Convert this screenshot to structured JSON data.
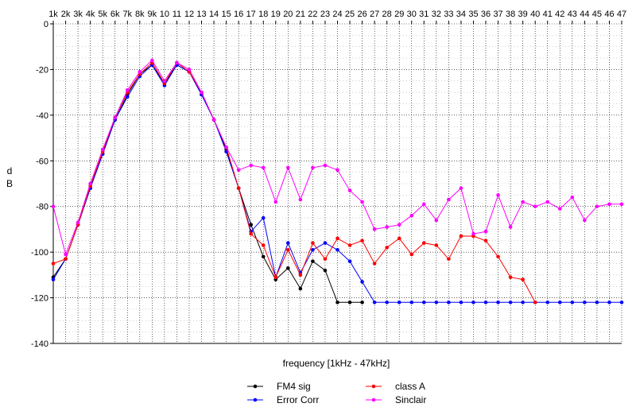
{
  "chart_data": {
    "type": "line",
    "title": "",
    "xlabel": "frequency [1kHz - 47kHz]",
    "ylabel": "d B",
    "ylabel_lines": [
      "d",
      "B"
    ],
    "x": [
      1,
      2,
      3,
      4,
      5,
      6,
      7,
      8,
      9,
      10,
      11,
      12,
      13,
      14,
      15,
      16,
      17,
      18,
      19,
      20,
      21,
      22,
      23,
      24,
      25,
      26,
      27,
      28,
      29,
      30,
      31,
      32,
      33,
      34,
      35,
      36,
      37,
      38,
      39,
      40,
      41,
      42,
      43,
      44,
      45,
      46,
      47
    ],
    "x_tick_labels": [
      "1k",
      "2k",
      "3k",
      "4k",
      "5k",
      "6k",
      "7k",
      "8k",
      "9k",
      "10",
      "11",
      "12",
      "13",
      "14",
      "15",
      "16",
      "17",
      "18",
      "19",
      "20",
      "21",
      "22",
      "23",
      "24",
      "25",
      "26",
      "27",
      "28",
      "29",
      "30",
      "31",
      "32",
      "33",
      "34",
      "35",
      "36",
      "37",
      "38",
      "39",
      "40",
      "41",
      "42",
      "43",
      "44",
      "45",
      "46",
      "47"
    ],
    "ylim": [
      -140,
      0
    ],
    "y_ticks": [
      0,
      -20,
      -40,
      -60,
      -80,
      -100,
      -120,
      -140
    ],
    "grid": true,
    "legend_position": "bottom-center",
    "series": [
      {
        "name": "FM4 sig",
        "color": "#000000",
        "values": [
          -111,
          -103,
          -88,
          -72,
          -57,
          -42,
          -31,
          -22,
          -18,
          -26,
          -18,
          -21,
          -31,
          -42,
          -55,
          -72,
          -88,
          -102,
          -112,
          -107,
          -116,
          -104,
          -108,
          -122,
          -122,
          -122,
          null,
          null,
          null,
          null,
          null,
          null,
          null,
          null,
          null,
          null,
          null,
          null,
          null,
          null,
          null,
          null,
          null,
          null,
          null,
          null,
          null
        ]
      },
      {
        "name": "Error Corr",
        "color": "#0000ff",
        "values": [
          -112,
          -103,
          -88,
          -72,
          -57,
          -42,
          -32,
          -23,
          -18,
          -27,
          -18,
          -21,
          -31,
          -42,
          -56,
          -72,
          -91,
          -85,
          -111,
          -96,
          -109,
          -99,
          -96,
          -99,
          -104,
          -113,
          -122,
          -122,
          -122,
          -122,
          -122,
          -122,
          -122,
          -122,
          -122,
          -122,
          -122,
          -122,
          -122,
          -122,
          -122,
          -122,
          -122,
          -122,
          -122,
          -122,
          -122
        ]
      },
      {
        "name": "class A",
        "color": "#ff0000",
        "values": [
          -105,
          -103,
          -88,
          -71,
          -56,
          -41,
          -30,
          -22,
          -17,
          -26,
          -17,
          -21,
          -30,
          -42,
          -54,
          -72,
          -92,
          -97,
          -111,
          -99,
          -110,
          -96,
          -103,
          -94,
          -97,
          -95,
          -105,
          -98,
          -94,
          -101,
          -96,
          -97,
          -103,
          -93,
          -93,
          -95,
          -102,
          -111,
          -112,
          -122,
          null,
          null,
          null,
          null,
          null,
          null,
          null
        ]
      },
      {
        "name": "Sinclair",
        "color": "#ff00ff",
        "values": [
          -80,
          -101,
          -87,
          -70,
          -55,
          -41,
          -29,
          -21,
          -16,
          -25,
          -17,
          -20,
          -30,
          -42,
          -54,
          -64,
          -62,
          -63,
          -78,
          -63,
          -77,
          -63,
          -62,
          -64,
          -73,
          -78,
          -90,
          -89,
          -88,
          -84,
          -79,
          -86,
          -77,
          -72,
          -92,
          -91,
          -75,
          -89,
          -78,
          -80,
          -78,
          -81,
          -76,
          -86,
          -80,
          -79,
          -79
        ]
      }
    ]
  },
  "legend": {
    "items": [
      {
        "name": "FM4 sig",
        "color": "#000000"
      },
      {
        "name": "Error Corr",
        "color": "#0000ff"
      },
      {
        "name": "class A",
        "color": "#ff0000"
      },
      {
        "name": "Sinclair",
        "color": "#ff00ff"
      }
    ]
  }
}
